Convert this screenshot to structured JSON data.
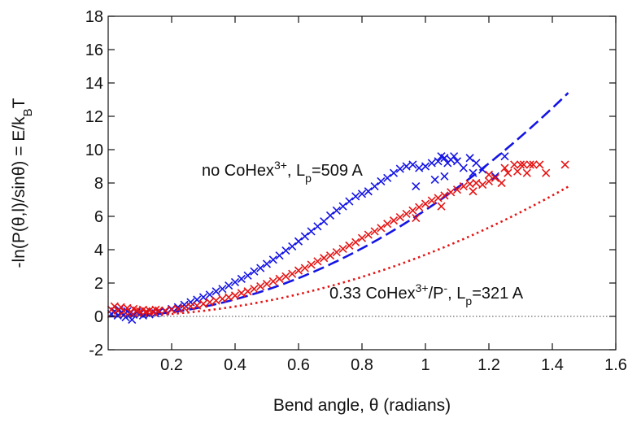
{
  "chart_data": {
    "type": "scatter",
    "title": "",
    "xlabel": "Bend angle, θ (radians)",
    "ylabel": "-ln(P(θ,l)/sinθ) = E/kBT",
    "ylabel_parts": {
      "main": "-ln(P(θ,l)/sinθ) = E/k",
      "sub": "B",
      "tail": "T"
    },
    "xlim": [
      0,
      1.6
    ],
    "ylim": [
      -2,
      18
    ],
    "x_ticks": [
      "0.2",
      "0.4",
      "0.6",
      "0.8",
      "1",
      "1.2",
      "1.4",
      "1.6"
    ],
    "y_ticks": [
      "-2",
      "0",
      "2",
      "4",
      "6",
      "8",
      "10",
      "12",
      "14",
      "16",
      "18"
    ],
    "grid": false,
    "reference_line": {
      "y": 0,
      "style": "dotted"
    },
    "annotations": [
      {
        "series": "no CoHex",
        "parts": [
          "no CoHex",
          "3+",
          ", L",
          "p",
          "=509 A"
        ]
      },
      {
        "series": "0.33 CoHex",
        "parts": [
          "0.33 CoHex",
          "3+",
          "/P",
          "-",
          ", L",
          "p",
          "=321 A"
        ]
      }
    ],
    "series": [
      {
        "color": "#1414e6",
        "marker": "x",
        "fit": {
          "style": "dashed",
          "coef": 12.75,
          "x_range": [
            0.0,
            1.45
          ]
        },
        "points": [
          [
            0.01,
            0.15
          ],
          [
            0.02,
            0.3
          ],
          [
            0.03,
            0.05
          ],
          [
            0.035,
            0.4
          ],
          [
            0.04,
            0.2
          ],
          [
            0.05,
            0.1
          ],
          [
            0.055,
            -0.05
          ],
          [
            0.06,
            0.3
          ],
          [
            0.07,
            0.2
          ],
          [
            0.075,
            -0.2
          ],
          [
            0.08,
            0.1
          ],
          [
            0.09,
            0.25
          ],
          [
            0.1,
            0.15
          ],
          [
            0.11,
            0.05
          ],
          [
            0.12,
            0.2
          ],
          [
            0.13,
            0.12
          ],
          [
            0.14,
            0.3
          ],
          [
            0.15,
            0.18
          ],
          [
            0.16,
            0.25
          ],
          [
            0.18,
            0.3
          ],
          [
            0.2,
            0.45
          ],
          [
            0.22,
            0.55
          ],
          [
            0.24,
            0.7
          ],
          [
            0.26,
            0.85
          ],
          [
            0.28,
            1.0
          ],
          [
            0.3,
            1.15
          ],
          [
            0.32,
            1.3
          ],
          [
            0.34,
            1.5
          ],
          [
            0.36,
            1.65
          ],
          [
            0.38,
            1.85
          ],
          [
            0.4,
            2.05
          ],
          [
            0.42,
            2.25
          ],
          [
            0.44,
            2.45
          ],
          [
            0.46,
            2.7
          ],
          [
            0.48,
            2.9
          ],
          [
            0.5,
            3.15
          ],
          [
            0.52,
            3.4
          ],
          [
            0.54,
            3.65
          ],
          [
            0.56,
            3.95
          ],
          [
            0.58,
            4.2
          ],
          [
            0.6,
            4.5
          ],
          [
            0.62,
            4.8
          ],
          [
            0.64,
            5.1
          ],
          [
            0.66,
            5.4
          ],
          [
            0.68,
            5.7
          ],
          [
            0.7,
            6.05
          ],
          [
            0.72,
            6.35
          ],
          [
            0.74,
            6.6
          ],
          [
            0.76,
            6.9
          ],
          [
            0.78,
            7.2
          ],
          [
            0.8,
            7.35
          ],
          [
            0.82,
            7.5
          ],
          [
            0.84,
            7.8
          ],
          [
            0.86,
            8.1
          ],
          [
            0.88,
            8.3
          ],
          [
            0.9,
            8.6
          ],
          [
            0.92,
            8.85
          ],
          [
            0.94,
            9.0
          ],
          [
            0.96,
            9.1
          ],
          [
            0.98,
            8.9
          ],
          [
            1.0,
            9.0
          ],
          [
            1.02,
            9.2
          ],
          [
            1.04,
            9.3
          ],
          [
            1.05,
            9.6
          ],
          [
            1.06,
            9.5
          ],
          [
            1.07,
            9.2
          ],
          [
            1.08,
            9.4
          ],
          [
            1.1,
            9.3
          ],
          [
            1.12,
            8.9
          ],
          [
            1.14,
            9.5
          ],
          [
            1.16,
            9.2
          ],
          [
            1.18,
            8.8
          ],
          [
            1.22,
            8.4
          ],
          [
            1.25,
            9.6
          ],
          [
            0.97,
            7.8
          ],
          [
            1.03,
            8.2
          ],
          [
            1.06,
            8.4
          ],
          [
            1.09,
            9.6
          ],
          [
            1.15,
            8.6
          ]
        ]
      },
      {
        "color": "#e61414",
        "marker": "x",
        "fit": {
          "style": "dotted",
          "coef": 7.4,
          "x_range": [
            0.0,
            1.45
          ]
        },
        "points": [
          [
            0.01,
            0.4
          ],
          [
            0.02,
            0.6
          ],
          [
            0.03,
            0.35
          ],
          [
            0.04,
            0.55
          ],
          [
            0.05,
            0.3
          ],
          [
            0.06,
            0.5
          ],
          [
            0.07,
            0.25
          ],
          [
            0.08,
            0.45
          ],
          [
            0.09,
            0.35
          ],
          [
            0.1,
            0.3
          ],
          [
            0.11,
            0.4
          ],
          [
            0.12,
            0.3
          ],
          [
            0.13,
            0.35
          ],
          [
            0.14,
            0.3
          ],
          [
            0.15,
            0.4
          ],
          [
            0.16,
            0.35
          ],
          [
            0.18,
            0.35
          ],
          [
            0.2,
            0.4
          ],
          [
            0.22,
            0.45
          ],
          [
            0.24,
            0.5
          ],
          [
            0.26,
            0.6
          ],
          [
            0.28,
            0.65
          ],
          [
            0.3,
            0.75
          ],
          [
            0.32,
            0.85
          ],
          [
            0.34,
            0.95
          ],
          [
            0.36,
            1.05
          ],
          [
            0.38,
            1.15
          ],
          [
            0.4,
            1.25
          ],
          [
            0.42,
            1.4
          ],
          [
            0.44,
            1.5
          ],
          [
            0.46,
            1.65
          ],
          [
            0.48,
            1.8
          ],
          [
            0.5,
            1.95
          ],
          [
            0.52,
            2.1
          ],
          [
            0.54,
            2.25
          ],
          [
            0.56,
            2.4
          ],
          [
            0.58,
            2.55
          ],
          [
            0.6,
            2.75
          ],
          [
            0.62,
            2.9
          ],
          [
            0.64,
            3.1
          ],
          [
            0.66,
            3.3
          ],
          [
            0.68,
            3.5
          ],
          [
            0.7,
            3.65
          ],
          [
            0.72,
            3.85
          ],
          [
            0.74,
            4.05
          ],
          [
            0.76,
            4.25
          ],
          [
            0.78,
            4.45
          ],
          [
            0.8,
            4.7
          ],
          [
            0.82,
            4.9
          ],
          [
            0.84,
            5.1
          ],
          [
            0.86,
            5.3
          ],
          [
            0.88,
            5.55
          ],
          [
            0.9,
            5.75
          ],
          [
            0.92,
            5.95
          ],
          [
            0.94,
            6.15
          ],
          [
            0.96,
            6.35
          ],
          [
            0.98,
            6.55
          ],
          [
            1.0,
            6.75
          ],
          [
            1.02,
            6.95
          ],
          [
            1.04,
            7.1
          ],
          [
            1.06,
            7.25
          ],
          [
            1.08,
            7.45
          ],
          [
            1.1,
            7.6
          ],
          [
            1.12,
            7.8
          ],
          [
            1.14,
            7.95
          ],
          [
            1.16,
            8.0
          ],
          [
            1.18,
            7.9
          ],
          [
            1.2,
            8.1
          ],
          [
            1.22,
            8.3
          ],
          [
            1.24,
            8.0
          ],
          [
            1.26,
            8.6
          ],
          [
            1.28,
            9.1
          ],
          [
            1.29,
            8.7
          ],
          [
            1.3,
            9.1
          ],
          [
            1.31,
            9.1
          ],
          [
            1.32,
            8.6
          ],
          [
            1.33,
            9.1
          ],
          [
            1.34,
            9.1
          ],
          [
            1.36,
            9.1
          ],
          [
            1.38,
            8.6
          ],
          [
            1.44,
            9.1
          ],
          [
            1.15,
            7.5
          ],
          [
            1.05,
            6.6
          ],
          [
            0.97,
            5.9
          ],
          [
            1.2,
            8.5
          ],
          [
            1.25,
            8.9
          ]
        ]
      }
    ]
  }
}
